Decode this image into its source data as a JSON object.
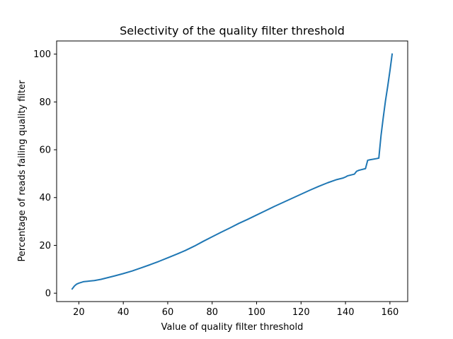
{
  "chart_data": {
    "type": "line",
    "title": "Selectivity of the quality filter threshold",
    "xlabel": "Value of quality filter threshold",
    "ylabel": "Percentage of reads failing quality filter",
    "xlim": [
      10,
      168
    ],
    "ylim": [
      -3.5,
      105.5
    ],
    "xticks": [
      20,
      40,
      60,
      80,
      100,
      120,
      140,
      160
    ],
    "yticks": [
      0,
      20,
      40,
      60,
      80,
      100
    ],
    "grid": false,
    "color": "#1f77b4",
    "series": [
      {
        "x": [
          17,
          18,
          19,
          20,
          21,
          22,
          24,
          27,
          30,
          33,
          36,
          40,
          44,
          48,
          52,
          56,
          60,
          64,
          68,
          72,
          76,
          80,
          84,
          88,
          92,
          96,
          100,
          104,
          108,
          112,
          116,
          120,
          124,
          128,
          132,
          136,
          139,
          140,
          141,
          144,
          145,
          146,
          149,
          150,
          151,
          154,
          155,
          156,
          157,
          158,
          159,
          160,
          161
        ],
        "y": [
          1.8,
          3.0,
          3.8,
          4.2,
          4.5,
          4.8,
          5.0,
          5.3,
          5.8,
          6.5,
          7.2,
          8.2,
          9.3,
          10.6,
          11.9,
          13.3,
          14.8,
          16.3,
          17.9,
          19.7,
          21.7,
          23.6,
          25.5,
          27.3,
          29.2,
          30.9,
          32.7,
          34.5,
          36.3,
          38.0,
          39.7,
          41.4,
          43.1,
          44.7,
          46.2,
          47.5,
          48.2,
          48.6,
          49.1,
          49.8,
          51.0,
          51.4,
          52.1,
          55.6,
          55.8,
          56.3,
          56.5,
          66.0,
          73.5,
          80.5,
          86.5,
          93.0,
          100.0
        ]
      }
    ]
  }
}
